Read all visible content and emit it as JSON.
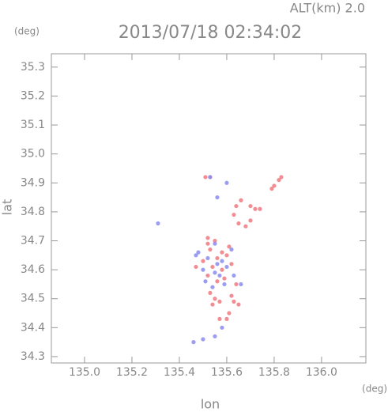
{
  "chart_data": {
    "type": "scatter",
    "title": "2013/07/18 02:34:02",
    "annotation": "ALT(km) 2.0",
    "xlabel": "lon",
    "ylabel": "lat",
    "x_unit": "(deg)",
    "y_unit": "(deg)",
    "xlim": [
      134.86,
      136.187
    ],
    "ylim": [
      34.278,
      35.346
    ],
    "xticks": [
      {
        "value": 135.0,
        "label": "135.0"
      },
      135.2,
      135.4,
      135.6,
      135.8,
      {
        "value": 136.0,
        "label": "136.0"
      }
    ],
    "yticks": [
      34.3,
      34.4,
      34.5,
      34.6,
      34.7,
      34.8,
      34.9,
      {
        "value": 35.0,
        "label": "35.0"
      },
      35.1,
      35.2,
      35.3
    ],
    "series": [
      {
        "color": "#f07a80",
        "x": [
          135.82,
          135.83,
          135.8,
          135.79,
          135.64,
          135.66,
          135.7,
          135.72,
          135.74,
          135.63,
          135.65,
          135.68,
          135.7,
          135.51,
          135.53,
          135.52,
          135.55,
          135.53,
          135.58,
          135.6,
          135.56,
          135.5,
          135.54,
          135.58,
          135.52,
          135.56,
          135.59,
          135.62,
          135.61,
          135.53,
          135.55,
          135.57,
          135.54,
          135.63,
          135.62,
          135.65,
          135.61,
          135.6,
          135.57,
          135.47,
          135.52,
          135.64
        ],
        "y": [
          34.91,
          34.92,
          34.89,
          34.88,
          34.82,
          34.84,
          34.82,
          34.81,
          34.81,
          34.79,
          34.76,
          34.75,
          34.77,
          34.92,
          34.92,
          34.71,
          34.7,
          34.67,
          34.66,
          34.65,
          34.64,
          34.63,
          34.61,
          34.6,
          34.58,
          34.56,
          34.57,
          34.62,
          34.68,
          34.52,
          34.5,
          34.49,
          34.48,
          34.49,
          34.51,
          34.48,
          34.45,
          34.43,
          34.43,
          34.61,
          34.69,
          34.55
        ]
      },
      {
        "color": "#8a8cf0",
        "x": [
          135.53,
          135.31,
          135.47,
          135.5,
          135.55,
          135.57,
          135.59,
          135.56,
          135.52,
          135.6,
          135.55,
          135.48,
          135.63,
          135.54,
          135.58,
          135.55,
          135.5,
          135.46,
          135.62,
          135.58,
          135.66,
          135.56,
          135.6,
          135.51
        ],
        "y": [
          34.92,
          34.76,
          34.65,
          34.6,
          34.59,
          34.58,
          34.55,
          34.62,
          34.64,
          34.61,
          34.69,
          34.66,
          34.58,
          34.54,
          34.4,
          34.37,
          34.36,
          34.35,
          34.67,
          34.63,
          34.55,
          34.85,
          34.9,
          34.56
        ]
      }
    ]
  }
}
